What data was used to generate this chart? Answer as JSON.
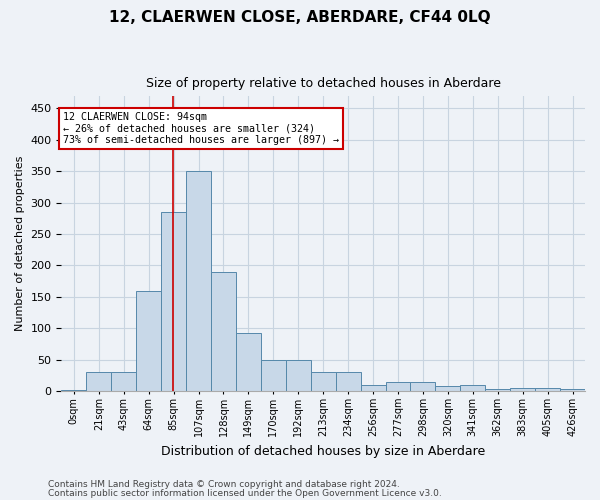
{
  "title": "12, CLAERWEN CLOSE, ABERDARE, CF44 0LQ",
  "subtitle": "Size of property relative to detached houses in Aberdare",
  "xlabel": "Distribution of detached houses by size in Aberdare",
  "ylabel": "Number of detached properties",
  "footer_line1": "Contains HM Land Registry data © Crown copyright and database right 2024.",
  "footer_line2": "Contains public sector information licensed under the Open Government Licence v3.0.",
  "bar_labels": [
    "0sqm",
    "21sqm",
    "43sqm",
    "64sqm",
    "85sqm",
    "107sqm",
    "128sqm",
    "149sqm",
    "170sqm",
    "192sqm",
    "213sqm",
    "234sqm",
    "256sqm",
    "277sqm",
    "298sqm",
    "320sqm",
    "341sqm",
    "362sqm",
    "383sqm",
    "405sqm",
    "426sqm"
  ],
  "bar_heights": [
    1,
    30,
    30,
    160,
    285,
    350,
    190,
    92,
    50,
    50,
    30,
    30,
    10,
    15,
    15,
    8,
    10,
    3,
    5,
    5,
    3
  ],
  "bar_color": "#c8d8e8",
  "bar_edge_color": "#5588aa",
  "ylim": [
    0,
    470
  ],
  "yticks": [
    0,
    50,
    100,
    150,
    200,
    250,
    300,
    350,
    400,
    450
  ],
  "property_sqm": 94,
  "annotation_title": "12 CLAERWEN CLOSE: 94sqm",
  "annotation_line1": "← 26% of detached houses are smaller (324)",
  "annotation_line2": "73% of semi-detached houses are larger (897) →",
  "annotation_box_color": "#ffffff",
  "annotation_box_edge": "#cc0000",
  "red_line_color": "#cc0000",
  "background_color": "#eef2f7",
  "grid_color": "#c8d4e0",
  "bin_width": 21,
  "title_fontsize": 11,
  "subtitle_fontsize": 9,
  "ylabel_fontsize": 8,
  "xlabel_fontsize": 9,
  "tick_fontsize": 7,
  "footer_fontsize": 6.5
}
